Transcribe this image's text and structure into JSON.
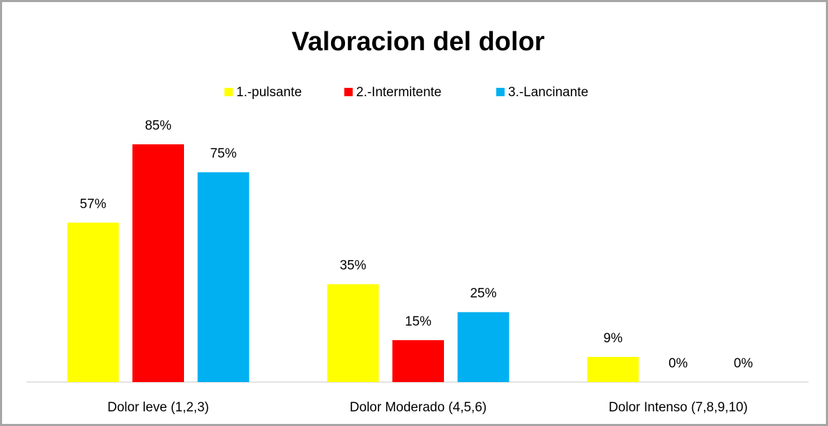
{
  "chart_data": {
    "type": "bar",
    "title": "Valoracion del dolor",
    "categories": [
      "Dolor leve (1,2,3)",
      "Dolor Moderado (4,5,6)",
      "Dolor Intenso (7,8,9,10)"
    ],
    "series": [
      {
        "name": "1.-pulsante",
        "color": "#ffff00",
        "values": [
          57,
          35,
          9
        ],
        "value_labels": [
          "57%",
          "35%",
          "9%"
        ]
      },
      {
        "name": "2.-Intermitente",
        "color": "#ff0000",
        "values": [
          85,
          15,
          0
        ],
        "value_labels": [
          "85%",
          "15%",
          "0%"
        ]
      },
      {
        "name": "3.-Lancinante",
        "color": "#00b0f0",
        "values": [
          75,
          25,
          0
        ],
        "value_labels": [
          "75%",
          "25%",
          "0%"
        ]
      }
    ],
    "legend": "top"
  }
}
